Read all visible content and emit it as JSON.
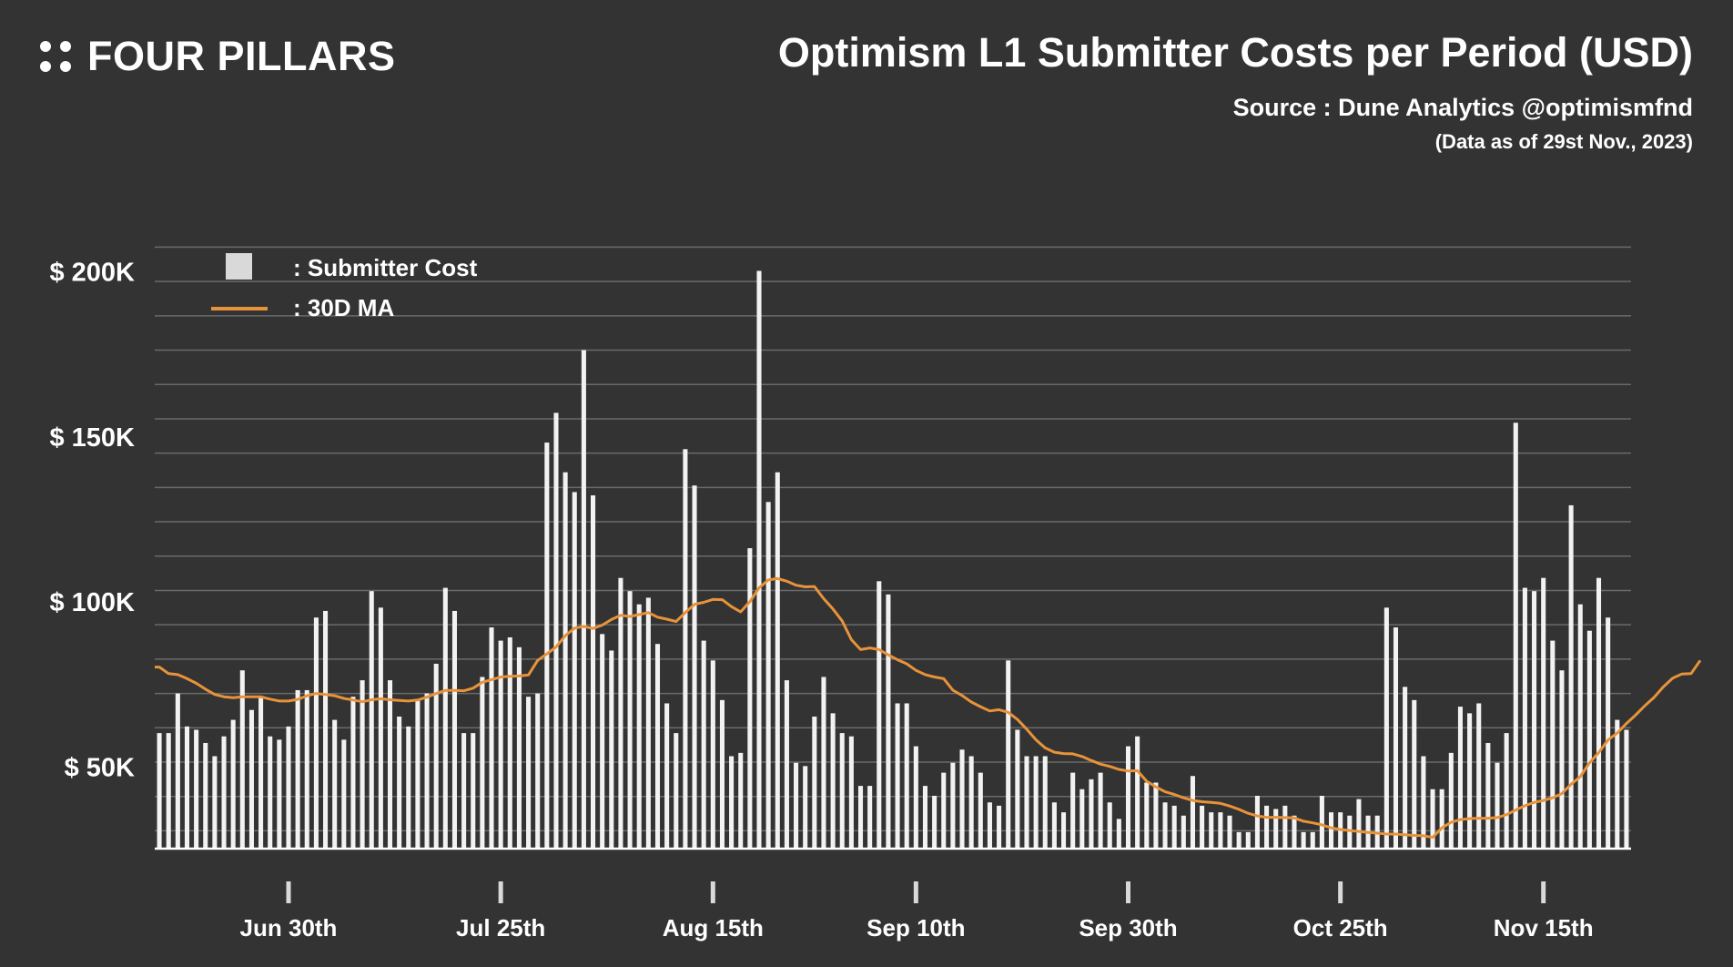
{
  "brand": {
    "name": "FOUR PILLARS",
    "icon": "four-dots-logo-icon"
  },
  "header": {
    "title": "Optimism L1 Submitter Costs per Period (USD)",
    "source": "Source : Dune Analytics @optimismfnd",
    "as_of": "(Data as of 29st Nov., 2023)"
  },
  "colors": {
    "background": "#333333",
    "bars": "#f2f2f2",
    "ma_line": "#e8933a",
    "grid": "#6a6a6a",
    "legend_box": "#d9d9d9"
  },
  "chart_data": {
    "type": "bar",
    "title": "Optimism L1 Submitter Costs per Period (USD)",
    "xlabel": "",
    "ylabel": "",
    "ylim": [
      25000,
      212000
    ],
    "grid": true,
    "legend_position": "top-left",
    "y_ticks": [
      {
        "value": 50000,
        "label": "$ 50K"
      },
      {
        "value": 100000,
        "label": "$ 100K"
      },
      {
        "value": 150000,
        "label": "$ 150K"
      },
      {
        "value": 200000,
        "label": "$ 200K"
      }
    ],
    "x_ticks": [
      {
        "index": 14,
        "label": "Jun 30th"
      },
      {
        "index": 37,
        "label": "Jul 25th"
      },
      {
        "index": 60,
        "label": "Aug 15th"
      },
      {
        "index": 82,
        "label": "Sep 10th"
      },
      {
        "index": 105,
        "label": "Sep 30th"
      },
      {
        "index": 128,
        "label": "Oct 25th"
      },
      {
        "index": 150,
        "label": "Nov 15th"
      }
    ],
    "legend": [
      {
        "kind": "box",
        "label": ": Submitter Cost"
      },
      {
        "kind": "line",
        "label": ": 30D MA"
      }
    ],
    "series": [
      {
        "name": "Submitter Cost",
        "type": "bar",
        "values": [
          60000,
          60000,
          72000,
          62000,
          61000,
          57000,
          53000,
          59000,
          64000,
          79000,
          67000,
          71000,
          59000,
          58000,
          62000,
          73000,
          73000,
          95000,
          97000,
          64000,
          58000,
          71000,
          76000,
          103000,
          98000,
          76000,
          65000,
          62000,
          70000,
          72000,
          81000,
          104000,
          97000,
          60000,
          60000,
          77000,
          92000,
          88000,
          89000,
          86000,
          71000,
          72000,
          148000,
          157000,
          139000,
          133000,
          176000,
          132000,
          90000,
          85000,
          107000,
          103000,
          99000,
          101000,
          87000,
          69000,
          60000,
          146000,
          135000,
          88000,
          82000,
          70000,
          53000,
          54000,
          116000,
          200000,
          130000,
          139000,
          76000,
          51000,
          50000,
          65000,
          77000,
          66000,
          60000,
          59000,
          44000,
          44000,
          106000,
          102000,
          69000,
          69000,
          56000,
          44000,
          41000,
          48000,
          51000,
          55000,
          53000,
          48000,
          39000,
          38000,
          82000,
          61000,
          53000,
          53000,
          53000,
          39000,
          36000,
          48000,
          43000,
          46000,
          48000,
          39000,
          34000,
          56000,
          59000,
          45000,
          45000,
          39000,
          38000,
          35000,
          47000,
          38000,
          36000,
          36000,
          35000,
          30000,
          30000,
          41000,
          38000,
          37000,
          38000,
          35000,
          30000,
          30000,
          41000,
          36000,
          36000,
          35000,
          40000,
          35000,
          35000,
          98000,
          92000,
          74000,
          70000,
          53000,
          43000,
          43000,
          54000,
          68000,
          66000,
          69000,
          57000,
          51000,
          60000,
          154000,
          104000,
          103000,
          107000,
          88000,
          79000,
          129000,
          99000,
          91000,
          107000,
          95000,
          64000,
          61000
        ]
      },
      {
        "name": "30D MA",
        "type": "line",
        "values": [
          80000,
          78000,
          77700,
          76500,
          75100,
          73300,
          71700,
          71000,
          70700,
          71000,
          71000,
          71000,
          70300,
          69700,
          69700,
          70200,
          71300,
          72000,
          71700,
          71300,
          70500,
          70000,
          69500,
          70100,
          70400,
          70100,
          69900,
          69700,
          70000,
          70900,
          72000,
          72900,
          72900,
          72800,
          73600,
          75400,
          76200,
          77000,
          77200,
          77300,
          77600,
          82000,
          84000,
          86100,
          89500,
          91800,
          92300,
          91700,
          92700,
          94400,
          95700,
          95300,
          95900,
          96500,
          95100,
          94500,
          93800,
          96500,
          99000,
          99600,
          100500,
          100400,
          98300,
          96700,
          99800,
          104000,
          106400,
          106800,
          106000,
          104800,
          104300,
          104400,
          100700,
          97600,
          94000,
          88300,
          85300,
          85800,
          85300,
          83700,
          82200,
          81000,
          79000,
          77700,
          77000,
          76500,
          73000,
          71400,
          69400,
          68000,
          66700,
          67100,
          66300,
          64100,
          61200,
          58000,
          55500,
          54200,
          53800,
          53700,
          52900,
          51700,
          50600,
          49900,
          49000,
          48500,
          48600,
          45400,
          43700,
          42200,
          41400,
          40400,
          39600,
          39200,
          39000,
          38700,
          37900,
          36900,
          35700,
          34900,
          34500,
          34500,
          34400,
          34300,
          33300,
          32800,
          32200,
          31300,
          30800,
          30500,
          30200,
          29900,
          29700,
          29400,
          29400,
          29200,
          29000,
          28900,
          28400,
          31300,
          33000,
          33800,
          34100,
          34200,
          34200,
          34400,
          35300,
          36700,
          38000,
          39000,
          39600,
          40400,
          41700,
          44500,
          46800,
          51000,
          54100,
          57900,
          60000,
          62900,
          65500,
          68300,
          70800,
          74000,
          76600,
          77900,
          78000,
          82000
        ]
      }
    ]
  }
}
